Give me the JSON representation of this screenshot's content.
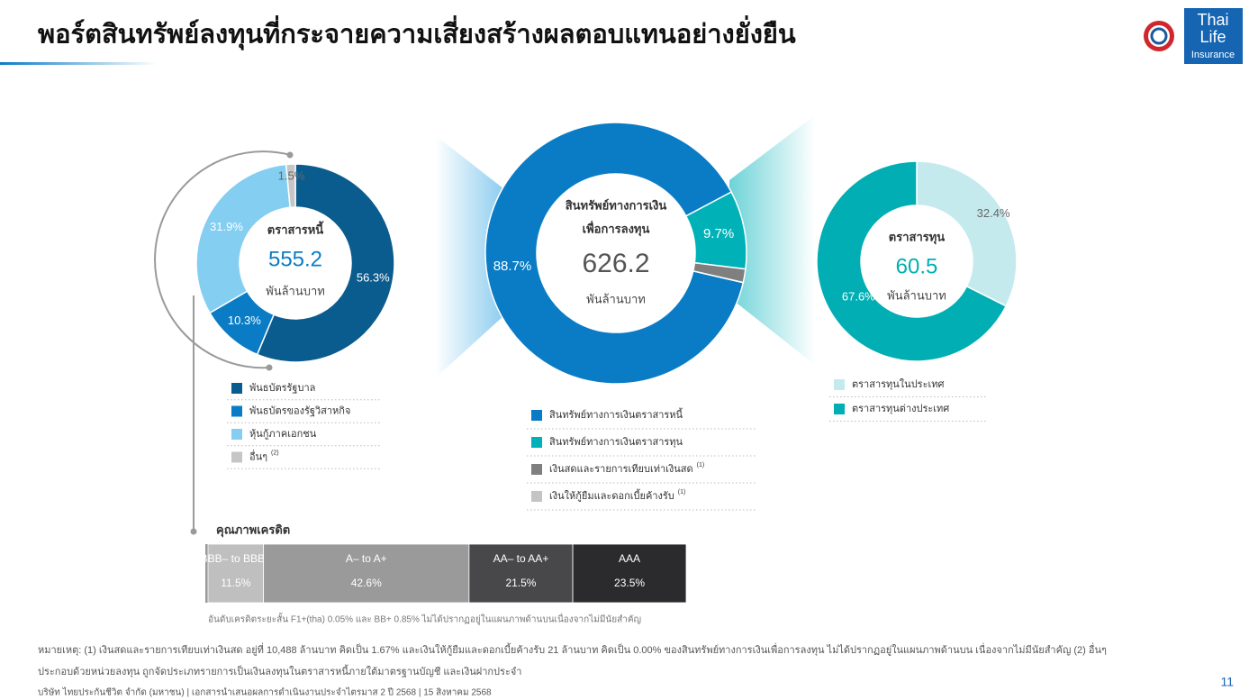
{
  "title": "พอร์ตสินทรัพย์ลงทุนที่กระจายความเสี่ยงสร้างผลตอบแทนอย่างยั่งยืน",
  "logo": [
    "Thai",
    "Life",
    "Insurance"
  ],
  "chart_data": [
    {
      "type": "donut",
      "center_title": [
        "ตราสารหนี้"
      ],
      "total": 555.2,
      "unit": "พันล้านบาท",
      "categories": [
        "พันธบัตรรัฐบาล",
        "พันธบัตรของรัฐวิสาหกิจ",
        "หุ้นกู้ภาคเอกชน",
        "อื่นๆ"
      ],
      "category_notes": [
        null,
        null,
        null,
        "(2)"
      ],
      "values": [
        56.3,
        10.3,
        31.9,
        1.5
      ],
      "value_labels": [
        "56.3%",
        "10.3%",
        "31.9%",
        "1.5%"
      ],
      "colors": [
        "#0b5c8e",
        "#0a7cc6",
        "#84cef2",
        "#c6c6c6"
      ]
    },
    {
      "type": "donut",
      "center_title": [
        "สินทรัพย์ทางการเงิน",
        "เพื่อการลงทุน"
      ],
      "total": 626.2,
      "unit": "พันล้านบาท",
      "categories": [
        "สินทรัพย์ทางการเงินตราสารหนี้",
        "สินทรัพย์ทางการเงินตราสารทุน",
        "เงินสดและรายการเทียบเท่าเงินสด",
        "เงินให้กู้ยืมและดอกเบี้ยค้างรับ"
      ],
      "category_notes": [
        null,
        null,
        "(1)",
        "(1)"
      ],
      "values": [
        88.7,
        9.7,
        1.67,
        0.0
      ],
      "value_labels": [
        "88.7%",
        "9.7%",
        null,
        null
      ],
      "colors": [
        "#0a7cc6",
        "#00b2b8",
        "#7f7f7f",
        "#c4c4c4"
      ]
    },
    {
      "type": "donut",
      "center_title": [
        "ตราสารทุน"
      ],
      "total": 60.5,
      "unit": "พันล้านบาท",
      "categories": [
        "ตราสารทุนในประเทศ",
        "ตราสารทุนต่างประเทศ"
      ],
      "values": [
        32.4,
        67.6
      ],
      "value_labels": [
        "32.4%",
        "67.6%"
      ],
      "colors": [
        "#c5eaee",
        "#00aeb3"
      ]
    },
    {
      "type": "stacked-bar",
      "title": "คุณภาพเครดิต",
      "categories": [
        "BBB– to BBB+",
        "A– to A+",
        "AA– to AA+",
        "AAA"
      ],
      "values": [
        11.5,
        42.6,
        21.5,
        23.5
      ],
      "value_labels": [
        "11.5%",
        "42.6%",
        "21.5%",
        "23.5%"
      ],
      "colors": [
        "#bfbfbf",
        "#9a9a9a",
        "#48484b",
        "#2b2b2e"
      ],
      "note": "อันดับเครดิตระยะสั้น F1+(tha) 0.05% และ BB+ 0.85% ไม่ได้ปรากฏอยู่ในแผนภาพด้านบนเนื่องจากไม่มีนัยสำคัญ"
    }
  ],
  "footnote": [
    "หมายเหตุ: (1) เงินสดและรายการเทียบเท่าเงินสด อยู่ที่ 10,488 ล้านบาท คิดเป็น 1.67% และเงินให้กู้ยืมและดอกเบี้ยค้างรับ 21 ล้านบาท คิดเป็น 0.00% ของสินทรัพย์ทางการเงินเพื่อการลงทุน ไม่ได้ปรากฏอยู่ในแผนภาพด้านบน เนื่องจากไม่มีนัยสำคัญ (2) อื่นๆ",
    "ประกอบด้วยหน่วยลงทุน ถูกจัดประเภทรายการเป็นเงินลงทุนในตราสารหนี้ภายใต้มาตรฐานบัญชี และเงินฝากประจำ"
  ],
  "footer": "บริษัท ไทยประกันชีวิต จำกัด (มหาชน) | เอกสารนำเสนอผลการดำเนินงานประจำไตรมาส 2 ปี 2568 | 15 สิงหาคม 2568",
  "page_number": 11
}
